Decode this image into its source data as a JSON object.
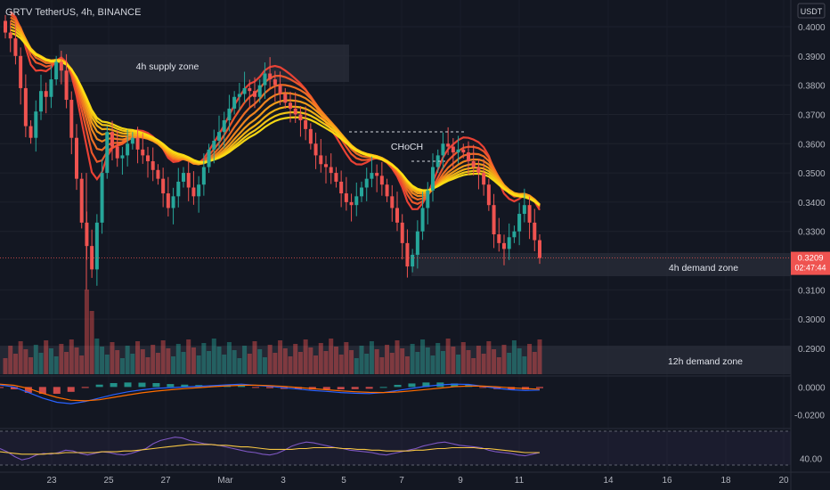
{
  "header": {
    "symbol_line": "GRTV TetherUS, 4h, BINANCE"
  },
  "currency_badge": "USDT",
  "colors": {
    "background": "#131722",
    "up": "#26a69a",
    "down": "#ef5350",
    "zone_fill": "#2a2e39",
    "price_tag": "#ef5350",
    "macd_line": "#2962ff",
    "signal_line": "#ff6d00",
    "rsi_line": "#7e57c2",
    "rsi_ma_line": "#f5c542",
    "ribbon": [
      "#f44336",
      "#f55a2c",
      "#f77225",
      "#f98a1f",
      "#fba21a",
      "#fcb916",
      "#fdd015",
      "#ffe014"
    ]
  },
  "chart_data": {
    "type": "candlestick",
    "price_axis": {
      "ticks": [
        "0.4000",
        "0.3900",
        "0.3800",
        "0.3700",
        "0.3600",
        "0.3500",
        "0.3400",
        "0.3300",
        "0.3100",
        "0.3000",
        "0.2900"
      ],
      "range": [
        0.286,
        0.404
      ]
    },
    "last_price": "0.3209",
    "countdown": "02:47:44",
    "x_axis": {
      "labels": [
        "23",
        "25",
        "27",
        "Mar",
        "3",
        "5",
        "7",
        "9",
        "11",
        "14",
        "16",
        "18",
        "20"
      ]
    },
    "zones": [
      {
        "label": "4h supply zone",
        "top": 0.394,
        "bottom": 0.381
      },
      {
        "label": "4h demand zone",
        "top": 0.323,
        "bottom": 0.316
      },
      {
        "label": "12h demand zone",
        "top": 0.29,
        "bottom": 0.28
      }
    ],
    "annotation": {
      "label": "CHoCH"
    },
    "closes": [
      0.398,
      0.396,
      0.39,
      0.379,
      0.366,
      0.362,
      0.371,
      0.378,
      0.376,
      0.382,
      0.388,
      0.385,
      0.375,
      0.362,
      0.348,
      0.333,
      0.325,
      0.317,
      0.333,
      0.35,
      0.364,
      0.359,
      0.355,
      0.356,
      0.36,
      0.362,
      0.358,
      0.356,
      0.354,
      0.351,
      0.348,
      0.343,
      0.338,
      0.342,
      0.347,
      0.35,
      0.345,
      0.342,
      0.346,
      0.352,
      0.358,
      0.361,
      0.364,
      0.368,
      0.372,
      0.376,
      0.377,
      0.379,
      0.378,
      0.376,
      0.38,
      0.384,
      0.382,
      0.38,
      0.377,
      0.374,
      0.372,
      0.37,
      0.368,
      0.365,
      0.36,
      0.356,
      0.353,
      0.352,
      0.35,
      0.347,
      0.343,
      0.34,
      0.339,
      0.342,
      0.345,
      0.348,
      0.35,
      0.349,
      0.346,
      0.342,
      0.338,
      0.333,
      0.326,
      0.318,
      0.322,
      0.33,
      0.338,
      0.344,
      0.352,
      0.356,
      0.36,
      0.359,
      0.357,
      0.358,
      0.357,
      0.354,
      0.352,
      0.35,
      0.346,
      0.339,
      0.329,
      0.326,
      0.324,
      0.328,
      0.33,
      0.336,
      0.339,
      0.333,
      0.327,
      0.3209
    ],
    "macd": {
      "zero_label": "0.0000",
      "lower_label": "-0.0200",
      "range": [
        -0.028,
        0.006
      ],
      "macd_line": [
        0.0015,
        0.0,
        -0.004,
        -0.008,
        -0.011,
        -0.012,
        -0.0105,
        -0.008,
        -0.0055,
        -0.0035,
        -0.002,
        -0.001,
        -0.0005,
        0.0,
        0.0005,
        0.001,
        0.0015,
        0.002,
        0.0012,
        0.0004,
        -0.0006,
        -0.0015,
        -0.0025,
        -0.0032,
        -0.004,
        -0.0045,
        -0.0048,
        -0.004,
        -0.0025,
        -0.001,
        0.0005,
        0.0015,
        0.002,
        0.0018,
        0.0005,
        -0.001,
        -0.002,
        -0.0025,
        -0.0022
      ],
      "signal_line": [
        0.002,
        0.0012,
        -0.001,
        -0.0045,
        -0.0075,
        -0.0095,
        -0.01,
        -0.0092,
        -0.0075,
        -0.0058,
        -0.0042,
        -0.003,
        -0.002,
        -0.0012,
        -0.0005,
        0.0002,
        0.0008,
        0.0012,
        0.0013,
        0.001,
        0.0004,
        -0.0004,
        -0.0012,
        -0.002,
        -0.0028,
        -0.0034,
        -0.0039,
        -0.004,
        -0.0036,
        -0.0028,
        -0.0018,
        -0.0008,
        0.0002,
        0.0006,
        0.0006,
        0.0001,
        -0.0006,
        -0.0012,
        -0.0016
      ]
    },
    "rsi": {
      "label": "40.00",
      "range": [
        25,
        80
      ],
      "rsi_line": [
        52,
        48,
        42,
        38,
        40,
        44,
        46,
        45,
        47,
        50,
        49,
        46,
        44,
        46,
        48,
        47,
        45,
        44,
        46,
        49,
        52,
        58,
        62,
        64,
        66,
        65,
        62,
        60,
        58,
        57,
        56,
        54,
        52,
        50,
        48,
        47,
        45,
        44,
        46,
        50,
        55,
        58,
        60,
        59,
        57,
        55,
        53,
        52,
        50,
        49,
        48,
        47,
        45,
        44,
        46,
        48,
        50,
        52,
        55,
        57,
        59,
        60,
        58,
        56,
        55,
        54,
        53,
        50,
        48,
        47,
        46,
        44,
        43,
        45,
        47
      ],
      "ma_line": [
        48,
        47,
        46,
        45,
        45,
        45,
        45,
        46,
        46,
        47,
        47,
        47,
        47,
        47,
        48,
        48,
        48,
        49,
        49,
        50,
        51,
        52,
        53,
        54,
        55,
        56,
        57,
        57,
        57,
        57,
        56,
        56,
        55,
        54,
        54,
        53,
        52,
        51,
        51,
        51,
        51,
        52,
        52,
        53,
        53,
        53,
        53,
        52,
        52,
        51,
        51,
        50,
        50,
        49,
        49,
        49,
        49,
        50,
        50,
        51,
        52,
        52,
        53,
        53,
        53,
        53,
        52,
        52,
        51,
        50,
        49,
        48,
        47,
        47,
        47
      ]
    }
  }
}
